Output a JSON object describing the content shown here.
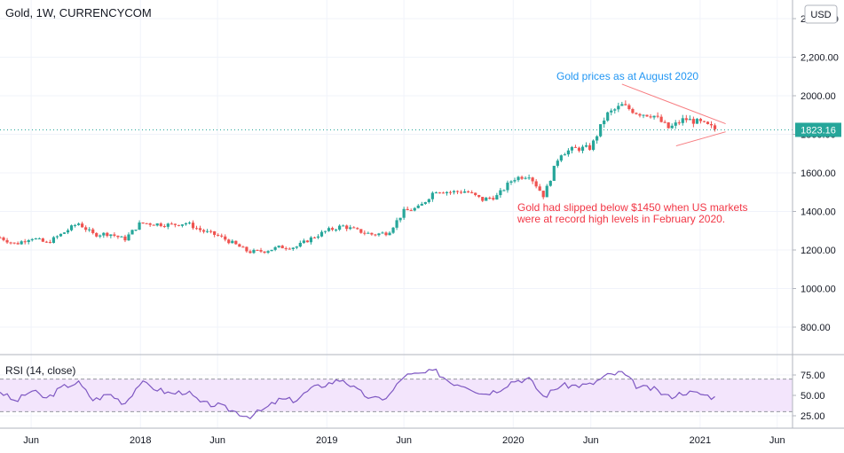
{
  "header": {
    "title": "Gold, 1W, CURRENCYCOM",
    "currency": "USD"
  },
  "price_axis": {
    "ticks": [
      "2,400.00",
      "2,200.00",
      "2000.00",
      "1800.00",
      "1600.00",
      "1400.00",
      "1200.00",
      "1000.00",
      "800.00"
    ],
    "tick_values": [
      2400,
      2200,
      2000,
      1800,
      1600,
      1400,
      1200,
      1000,
      800
    ],
    "last_price_label": "1823.16",
    "last_price": 1823.16
  },
  "rsi_axis": {
    "ticks": [
      "75.00",
      "50.00",
      "25.00"
    ],
    "tick_values": [
      75,
      50,
      25
    ],
    "last_value_label": "50.00"
  },
  "time_axis": {
    "labels": [
      "Jun",
      "2018",
      "Jun",
      "2019",
      "Jun",
      "2020",
      "Jun",
      "2021",
      "Jun"
    ]
  },
  "annotations": {
    "august_2020": "Gold prices as at August 2020",
    "feb_2020_line1": "Gold had slipped below $1450 when US markets",
    "feb_2020_line2": "were at record high levels in February 2020."
  },
  "colors": {
    "up": "#26a69a",
    "down": "#ef5350",
    "rsi_line": "#7e57c2",
    "rsi_band": "#f3e5fc",
    "annotation_blue": "#2196f3",
    "annotation_red": "#f23645",
    "triangle": "#f77c80",
    "price_line": "#26a69a"
  },
  "chart_data": [
    {
      "type": "candlestick",
      "title": "Gold, 1W, CURRENCYCOM",
      "x_range": [
        "2017-04",
        "2021-07"
      ],
      "ylim": [
        700,
        2450
      ],
      "series": [
        {
          "name": "Gold",
          "weekly_close_points": [
            [
              "2017-04-01",
              1265
            ],
            [
              "2017-05-01",
              1230
            ],
            [
              "2017-06-01",
              1265
            ],
            [
              "2017-07-01",
              1235
            ],
            [
              "2017-08-01",
              1285
            ],
            [
              "2017-09-01",
              1340
            ],
            [
              "2017-10-01",
              1280
            ],
            [
              "2017-11-01",
              1285
            ],
            [
              "2017-12-01",
              1255
            ],
            [
              "2018-01-01",
              1340
            ],
            [
              "2018-02-01",
              1335
            ],
            [
              "2018-03-01",
              1330
            ],
            [
              "2018-04-01",
              1340
            ],
            [
              "2018-05-01",
              1300
            ],
            [
              "2018-06-01",
              1275
            ],
            [
              "2018-07-01",
              1235
            ],
            [
              "2018-08-01",
              1190
            ],
            [
              "2018-09-01",
              1195
            ],
            [
              "2018-10-01",
              1215
            ],
            [
              "2018-11-01",
              1215
            ],
            [
              "2018-12-01",
              1260
            ],
            [
              "2019-01-01",
              1300
            ],
            [
              "2019-02-01",
              1325
            ],
            [
              "2019-03-01",
              1300
            ],
            [
              "2019-04-01",
              1280
            ],
            [
              "2019-05-01",
              1290
            ],
            [
              "2019-06-01",
              1400
            ],
            [
              "2019-07-01",
              1420
            ],
            [
              "2019-08-01",
              1510
            ],
            [
              "2019-09-01",
              1500
            ],
            [
              "2019-10-01",
              1505
            ],
            [
              "2019-11-01",
              1460
            ],
            [
              "2019-12-01",
              1480
            ],
            [
              "2020-01-01",
              1570
            ],
            [
              "2020-02-01",
              1590
            ],
            [
              "2020-03-01",
              1480
            ],
            [
              "2020-04-01",
              1700
            ],
            [
              "2020-05-01",
              1725
            ],
            [
              "2020-06-01",
              1730
            ],
            [
              "2020-07-01",
              1900
            ],
            [
              "2020-08-01",
              1950
            ],
            [
              "2020-09-01",
              1910
            ],
            [
              "2020-10-01",
              1900
            ],
            [
              "2020-11-01",
              1830
            ],
            [
              "2020-12-01",
              1880
            ],
            [
              "2021-01-01",
              1860
            ],
            [
              "2021-02-01",
              1825
            ]
          ]
        }
      ],
      "annotations": [
        "Gold prices as at August 2020",
        "Gold had slipped below $1450 when US markets were at record high levels in February 2020."
      ],
      "last_price": 1823.16
    },
    {
      "type": "line",
      "title": "RSI (14, close)",
      "ylim": [
        20,
        85
      ],
      "bands": [
        30,
        70
      ],
      "series": [
        {
          "name": "RSI (14, close)",
          "points": [
            [
              "2017-04-01",
              55
            ],
            [
              "2017-05-01",
              42
            ],
            [
              "2017-06-01",
              56
            ],
            [
              "2017-07-01",
              46
            ],
            [
              "2017-08-01",
              60
            ],
            [
              "2017-09-01",
              66
            ],
            [
              "2017-10-01",
              44
            ],
            [
              "2017-11-01",
              52
            ],
            [
              "2017-12-01",
              40
            ],
            [
              "2018-01-01",
              66
            ],
            [
              "2018-02-01",
              58
            ],
            [
              "2018-03-01",
              52
            ],
            [
              "2018-04-01",
              55
            ],
            [
              "2018-05-01",
              40
            ],
            [
              "2018-06-01",
              38
            ],
            [
              "2018-07-01",
              31
            ],
            [
              "2018-08-01",
              24
            ],
            [
              "2018-09-01",
              33
            ],
            [
              "2018-10-01",
              45
            ],
            [
              "2018-11-01",
              44
            ],
            [
              "2018-12-01",
              58
            ],
            [
              "2019-01-01",
              64
            ],
            [
              "2019-02-01",
              70
            ],
            [
              "2019-03-01",
              56
            ],
            [
              "2019-04-01",
              45
            ],
            [
              "2019-05-01",
              48
            ],
            [
              "2019-06-01",
              74
            ],
            [
              "2019-07-01",
              76
            ],
            [
              "2019-08-01",
              80
            ],
            [
              "2019-09-01",
              66
            ],
            [
              "2019-10-01",
              62
            ],
            [
              "2019-11-01",
              52
            ],
            [
              "2019-12-01",
              56
            ],
            [
              "2020-01-01",
              68
            ],
            [
              "2020-02-01",
              70
            ],
            [
              "2020-03-01",
              48
            ],
            [
              "2020-04-01",
              62
            ],
            [
              "2020-05-01",
              62
            ],
            [
              "2020-06-01",
              63
            ],
            [
              "2020-07-01",
              74
            ],
            [
              "2020-08-01",
              78
            ],
            [
              "2020-09-01",
              60
            ],
            [
              "2020-10-01",
              58
            ],
            [
              "2020-11-01",
              48
            ],
            [
              "2020-12-01",
              54
            ],
            [
              "2021-01-01",
              52
            ],
            [
              "2021-02-01",
              47
            ]
          ]
        }
      ]
    }
  ]
}
